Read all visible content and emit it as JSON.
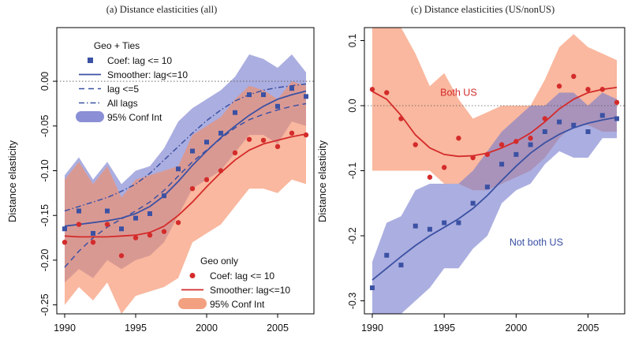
{
  "chart_data": [
    {
      "type": "line",
      "title": "(a) Distance elasticities (all)",
      "xlabel": "",
      "ylabel": "Distance elasticity",
      "xlim": [
        1990,
        2007
      ],
      "ylim": [
        -0.26,
        0.06
      ],
      "xticks": [
        1990,
        1995,
        2000,
        2005
      ],
      "yticks": [
        0.0,
        -0.05,
        -0.1,
        -0.15,
        -0.2,
        -0.25
      ],
      "ytick_labels": [
        "0.00",
        "-0.05",
        "-0.10",
        "-0.15",
        "-0.20",
        "-0.25"
      ],
      "reference_line": 0,
      "x": [
        1990,
        1991,
        1992,
        1993,
        1994,
        1995,
        1996,
        1997,
        1998,
        1999,
        2000,
        2001,
        2002,
        2003,
        2004,
        2005,
        2006,
        2007
      ],
      "legend_blocks": [
        {
          "heading": "Geo + Ties",
          "entries": [
            {
              "label": "Coef: lag <= 10",
              "kind": "square",
              "color": "#3b51a3"
            },
            {
              "label": "Smoother: lag<=10",
              "kind": "line",
              "color": "#3b51a3"
            },
            {
              "label": "lag <=5",
              "kind": "dash",
              "color": "#3b51a3"
            },
            {
              "label": "All lags",
              "kind": "dashdot",
              "color": "#3b51a3"
            },
            {
              "label": "95% Conf Int",
              "kind": "band",
              "color": "#8a8fd6"
            }
          ]
        },
        {
          "heading": "Geo only",
          "entries": [
            {
              "label": "Coef: lag <= 10",
              "kind": "dot",
              "color": "#d42b2b"
            },
            {
              "label": "Smoother: lag<=10",
              "kind": "line",
              "color": "#d42b2b"
            },
            {
              "label": "95% Conf Int",
              "kind": "band",
              "color": "#f2a080"
            }
          ]
        }
      ],
      "series": [
        {
          "group": "Geo + Ties",
          "kind": "points",
          "values": [
            -0.165,
            -0.145,
            -0.17,
            -0.145,
            -0.165,
            -0.153,
            -0.148,
            -0.128,
            -0.098,
            -0.078,
            -0.068,
            -0.058,
            -0.035,
            -0.015,
            -0.015,
            -0.028,
            -0.008,
            -0.017
          ]
        },
        {
          "group": "Geo + Ties",
          "kind": "smoother",
          "values": [
            -0.162,
            -0.16,
            -0.158,
            -0.156,
            -0.153,
            -0.148,
            -0.14,
            -0.128,
            -0.112,
            -0.094,
            -0.078,
            -0.063,
            -0.05,
            -0.038,
            -0.028,
            -0.02,
            -0.015,
            -0.011
          ]
        },
        {
          "group": "Geo + Ties",
          "kind": "lag5",
          "values": [
            -0.208,
            -0.19,
            -0.175,
            -0.163,
            -0.154,
            -0.145,
            -0.135,
            -0.122,
            -0.106,
            -0.09,
            -0.077,
            -0.064,
            -0.052,
            -0.043,
            -0.037,
            -0.032,
            -0.028,
            -0.025
          ]
        },
        {
          "group": "Geo + Ties",
          "kind": "alllags",
          "values": [
            -0.145,
            -0.14,
            -0.135,
            -0.13,
            -0.123,
            -0.115,
            -0.103,
            -0.088,
            -0.073,
            -0.058,
            -0.044,
            -0.032,
            -0.022,
            -0.015,
            -0.01,
            -0.007,
            -0.005,
            -0.003
          ]
        },
        {
          "group": "Geo + Ties",
          "kind": "band",
          "lower": [
            -0.225,
            -0.21,
            -0.22,
            -0.2,
            -0.21,
            -0.2,
            -0.195,
            -0.18,
            -0.15,
            -0.12,
            -0.11,
            -0.1,
            -0.08,
            -0.06,
            -0.06,
            -0.07,
            -0.045,
            -0.05
          ],
          "upper": [
            -0.105,
            -0.085,
            -0.11,
            -0.09,
            -0.115,
            -0.1,
            -0.095,
            -0.075,
            -0.045,
            -0.03,
            -0.02,
            -0.01,
            0.005,
            0.03,
            0.025,
            0.015,
            0.03,
            0.01
          ]
        },
        {
          "group": "Geo only",
          "kind": "points",
          "values": [
            -0.18,
            -0.16,
            -0.18,
            -0.16,
            -0.195,
            -0.175,
            -0.172,
            -0.168,
            -0.158,
            -0.12,
            -0.11,
            -0.1,
            -0.08,
            -0.065,
            -0.066,
            -0.073,
            -0.058,
            -0.06
          ]
        },
        {
          "group": "Geo only",
          "kind": "smoother",
          "values": [
            -0.173,
            -0.174,
            -0.174,
            -0.174,
            -0.173,
            -0.172,
            -0.169,
            -0.162,
            -0.15,
            -0.135,
            -0.118,
            -0.102,
            -0.088,
            -0.077,
            -0.07,
            -0.066,
            -0.062,
            -0.059
          ]
        },
        {
          "group": "Geo only",
          "kind": "band",
          "lower": [
            -0.25,
            -0.23,
            -0.245,
            -0.225,
            -0.26,
            -0.24,
            -0.235,
            -0.23,
            -0.22,
            -0.18,
            -0.17,
            -0.16,
            -0.14,
            -0.12,
            -0.12,
            -0.125,
            -0.11,
            -0.115
          ],
          "upper": [
            -0.11,
            -0.09,
            -0.115,
            -0.095,
            -0.13,
            -0.11,
            -0.105,
            -0.1,
            -0.095,
            -0.06,
            -0.05,
            -0.04,
            -0.02,
            -0.005,
            -0.01,
            -0.02,
            0.0,
            -0.005
          ]
        }
      ]
    },
    {
      "type": "line",
      "title": "(c) Distance elasticities (US/nonUS)",
      "xlabel": "",
      "ylabel": "Distance elasticity",
      "xlim": [
        1990,
        2007
      ],
      "ylim": [
        -0.32,
        0.12
      ],
      "xticks": [
        1990,
        1995,
        2000,
        2005
      ],
      "yticks": [
        0.1,
        0.0,
        -0.1,
        -0.2,
        -0.3
      ],
      "ytick_labels": [
        "0.1",
        "0.0",
        "-0.1",
        "-0.2",
        "-0.3"
      ],
      "reference_line": 0,
      "x": [
        1990,
        1991,
        1992,
        1993,
        1994,
        1995,
        1996,
        1997,
        1998,
        1999,
        2000,
        2001,
        2002,
        2003,
        2004,
        2005,
        2006,
        2007
      ],
      "annotations": [
        {
          "text": "Both US",
          "x": 1996,
          "y": 0.015,
          "color": "#d42b2b"
        },
        {
          "text": "Not both US",
          "x": 2001.4,
          "y": -0.215,
          "color": "#3b51a3"
        }
      ],
      "series": [
        {
          "name": "Both US",
          "kind": "points",
          "values": [
            0.025,
            0.02,
            -0.02,
            -0.06,
            -0.11,
            -0.095,
            -0.05,
            -0.08,
            -0.075,
            -0.06,
            -0.055,
            -0.05,
            -0.02,
            0.03,
            0.045,
            0.025,
            0.025,
            0.005
          ]
        },
        {
          "name": "Both US",
          "kind": "smoother",
          "values": [
            0.022,
            0.01,
            -0.015,
            -0.045,
            -0.065,
            -0.075,
            -0.078,
            -0.077,
            -0.073,
            -0.065,
            -0.055,
            -0.042,
            -0.025,
            -0.005,
            0.01,
            0.02,
            0.025,
            0.028
          ]
        },
        {
          "name": "Both US",
          "kind": "band",
          "lower": [
            -0.1,
            -0.1,
            -0.1,
            -0.1,
            -0.1,
            -0.12,
            -0.12,
            -0.13,
            -0.13,
            -0.12,
            -0.11,
            -0.1,
            -0.08,
            -0.05,
            -0.03,
            -0.03,
            -0.04,
            -0.04
          ],
          "upper": [
            0.12,
            0.12,
            0.12,
            0.08,
            0.03,
            0.05,
            0.01,
            -0.02,
            -0.01,
            0.0,
            0.0,
            0.0,
            0.04,
            0.09,
            0.11,
            0.09,
            0.08,
            0.07
          ]
        },
        {
          "name": "Not both US",
          "kind": "points",
          "values": [
            -0.28,
            -0.23,
            -0.245,
            -0.185,
            -0.19,
            -0.18,
            -0.18,
            -0.15,
            -0.125,
            -0.09,
            -0.075,
            -0.06,
            -0.04,
            -0.025,
            -0.03,
            -0.04,
            -0.015,
            -0.02
          ]
        },
        {
          "name": "Not both US",
          "kind": "smoother",
          "values": [
            -0.268,
            -0.25,
            -0.232,
            -0.215,
            -0.2,
            -0.187,
            -0.174,
            -0.158,
            -0.138,
            -0.115,
            -0.093,
            -0.073,
            -0.057,
            -0.044,
            -0.034,
            -0.027,
            -0.022,
            -0.018
          ]
        },
        {
          "name": "Not both US",
          "kind": "band",
          "lower": [
            -0.32,
            -0.32,
            -0.32,
            -0.3,
            -0.28,
            -0.25,
            -0.25,
            -0.22,
            -0.2,
            -0.15,
            -0.13,
            -0.12,
            -0.09,
            -0.07,
            -0.08,
            -0.08,
            -0.05,
            -0.05
          ],
          "upper": [
            -0.24,
            -0.18,
            -0.17,
            -0.13,
            -0.12,
            -0.12,
            -0.12,
            -0.1,
            -0.07,
            -0.04,
            -0.02,
            0.0,
            0.0,
            0.02,
            0.02,
            0.0,
            0.02,
            0.01
          ]
        }
      ]
    }
  ]
}
